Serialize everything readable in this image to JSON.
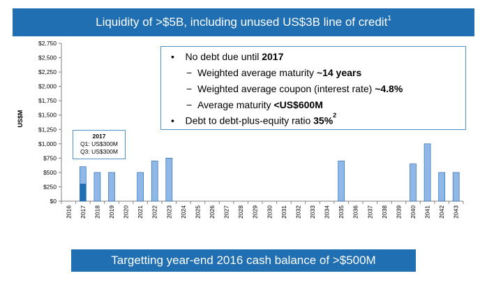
{
  "header": {
    "title": "Liquidity of >$5B, including unused US$3B line of credit",
    "title_footnote": "1"
  },
  "callout": {
    "bullet1_prefix": "No debt due until ",
    "bullet1_bold": "2017",
    "sub1_prefix": "Weighted average maturity ",
    "sub1_bold": "~14 years",
    "sub2_prefix": "Weighted average coupon (interest rate) ",
    "sub2_bold": "~4.8%",
    "sub3_prefix": "Average maturity ",
    "sub3_bold": "<US$600M",
    "bullet2_prefix": "Debt to debt-plus-equity ratio ",
    "bullet2_bold": "35%",
    "bullet2_footnote": "2",
    "bullet_char": "•",
    "dash_char": "−"
  },
  "note_2017": {
    "year": "2017",
    "q1": "Q1: US$300M",
    "q3": "Q3: US$300M"
  },
  "footer": {
    "text": "Targetting year-end 2016 cash balance of >$500M"
  },
  "colors": {
    "banner": "#1f6fb2",
    "bar_light": "#8fb8e8",
    "bar_dark": "#1f6fb2",
    "bar_border": "#2f6fb2",
    "axis": "#7f7f7f"
  },
  "chart_data": {
    "type": "bar",
    "ylabel": "US$M",
    "ylim": [
      0,
      2750
    ],
    "yticks": [
      0,
      250,
      500,
      750,
      1000,
      1250,
      1500,
      1750,
      2000,
      2250,
      2500,
      2750
    ],
    "ytick_labels": [
      "$0",
      "$250",
      "$500",
      "$750",
      "$1,000",
      "$1,250",
      "$1,500",
      "$1,750",
      "$2,000",
      "$2,250",
      "$2,500",
      "$2,750"
    ],
    "categories": [
      "2016",
      "2017",
      "2018",
      "2019",
      "2020",
      "2021",
      "2022",
      "2023",
      "2024",
      "2025",
      "2026",
      "2027",
      "2028",
      "2029",
      "2030",
      "2031",
      "2032",
      "2033",
      "2034",
      "2035",
      "2036",
      "2037",
      "2038",
      "2039",
      "2040",
      "2041",
      "2042",
      "2043"
    ],
    "values": [
      0,
      600,
      500,
      500,
      0,
      500,
      700,
      750,
      0,
      0,
      0,
      0,
      0,
      0,
      0,
      0,
      0,
      0,
      0,
      700,
      0,
      0,
      0,
      0,
      650,
      1000,
      500,
      500
    ],
    "stacked_2017": [
      {
        "name": "Q1",
        "value": 300
      },
      {
        "name": "Q3",
        "value": 300
      }
    ],
    "grid": false,
    "legend": "none"
  }
}
